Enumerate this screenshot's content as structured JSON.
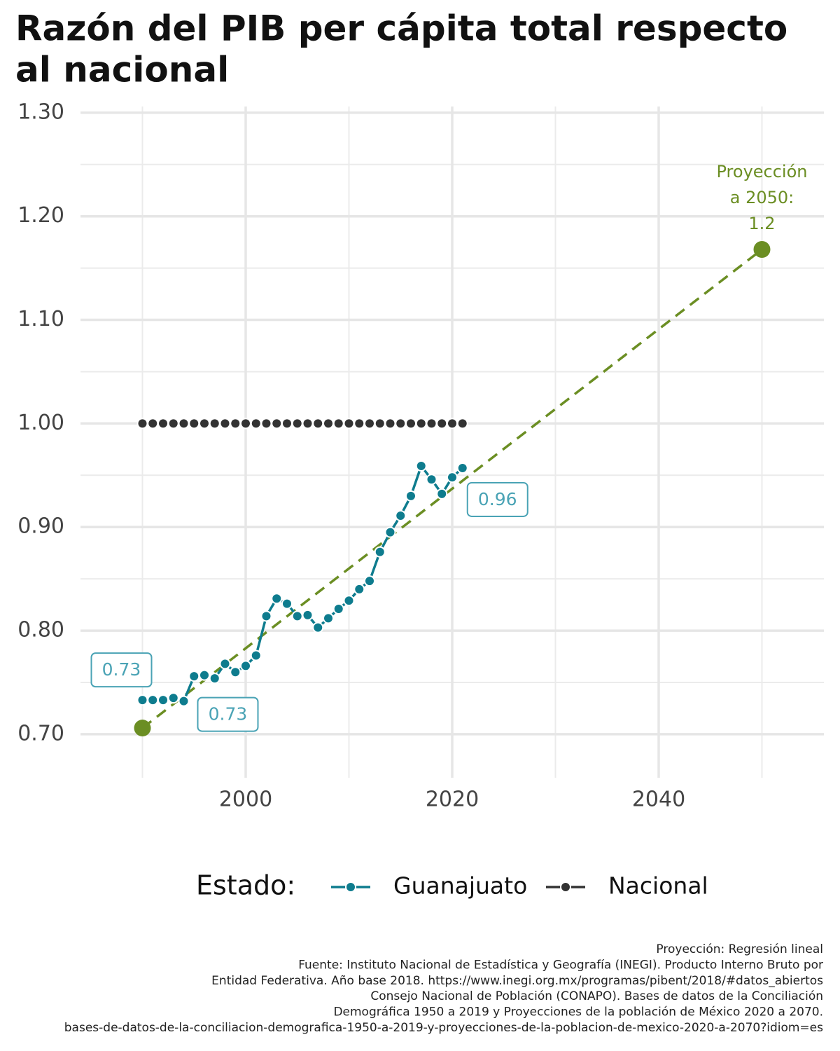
{
  "chart_data": {
    "type": "line",
    "title": [
      "Razón del PIB per cápita total respecto",
      "al nacional"
    ],
    "x": [
      1990,
      1991,
      1992,
      1993,
      1994,
      1995,
      1996,
      1997,
      1998,
      1999,
      2000,
      2001,
      2002,
      2003,
      2004,
      2005,
      2006,
      2007,
      2008,
      2009,
      2010,
      2011,
      2012,
      2013,
      2014,
      2015,
      2016,
      2017,
      2018,
      2019,
      2020,
      2021
    ],
    "series": [
      {
        "name": "Guanajuato",
        "color": "#0e7c8e",
        "values": [
          0.733,
          0.733,
          0.733,
          0.735,
          0.732,
          0.756,
          0.757,
          0.754,
          0.768,
          0.76,
          0.766,
          0.776,
          0.814,
          0.831,
          0.826,
          0.814,
          0.815,
          0.803,
          0.812,
          0.821,
          0.829,
          0.84,
          0.848,
          0.876,
          0.895,
          0.911,
          0.93,
          0.959,
          0.946,
          0.932,
          0.948,
          0.957
        ]
      },
      {
        "name": "Nacional",
        "color": "#333333",
        "values": [
          1,
          1,
          1,
          1,
          1,
          1,
          1,
          1,
          1,
          1,
          1,
          1,
          1,
          1,
          1,
          1,
          1,
          1,
          1,
          1,
          1,
          1,
          1,
          1,
          1,
          1,
          1,
          1,
          1,
          1,
          1,
          1
        ]
      }
    ],
    "projection": {
      "x": [
        1990,
        2050
      ],
      "values": [
        0.706,
        1.168
      ],
      "color": "#6b8e23"
    },
    "annotations": [
      {
        "text": "0.73",
        "color": "#4aa3b5"
      },
      {
        "text": "0.73",
        "color": "#4aa3b5"
      },
      {
        "text": "0.96",
        "color": "#4aa3b5"
      },
      {
        "lines": [
          "Proyección",
          "a 2050:",
          "1.2"
        ],
        "color": "#6b8e23"
      }
    ],
    "xlim": [
      1984,
      2056
    ],
    "ylim": [
      0.658,
      1.306
    ],
    "xticks": [
      2000,
      2020,
      2040
    ],
    "yticks": [
      {
        "value": 0.7,
        "label": "0.70"
      },
      {
        "value": 0.8,
        "label": "0.80"
      },
      {
        "value": 0.9,
        "label": "0.90"
      },
      {
        "value": 1.0,
        "label": "1.00"
      },
      {
        "value": 1.1,
        "label": "1.10"
      },
      {
        "value": 1.2,
        "label": "1.20"
      },
      {
        "value": 1.3,
        "label": "1.30"
      }
    ],
    "grid": true,
    "legend_title": "Estado:",
    "legend_position": "bottom",
    "caption": [
      "Proyección: Regresión lineal",
      "Fuente: Instituto Nacional de Estadística y Geografía (INEGI). Producto Interno Bruto por",
      "Entidad Federativa. Año base 2018. https://www.inegi.org.mx/programas/pibent/2018/#datos_abiertos",
      "Consejo Nacional de Población (CONAPO). Bases de datos de la Conciliación",
      "Demográfica 1950 a 2019 y Proyecciones de la población de México 2020 a 2070.",
      "bases-de-datos-de-la-conciliacion-demografica-1950-a-2019-y-proyecciones-de-la-poblacion-de-mexico-2020-a-2070?idiom=es"
    ]
  }
}
